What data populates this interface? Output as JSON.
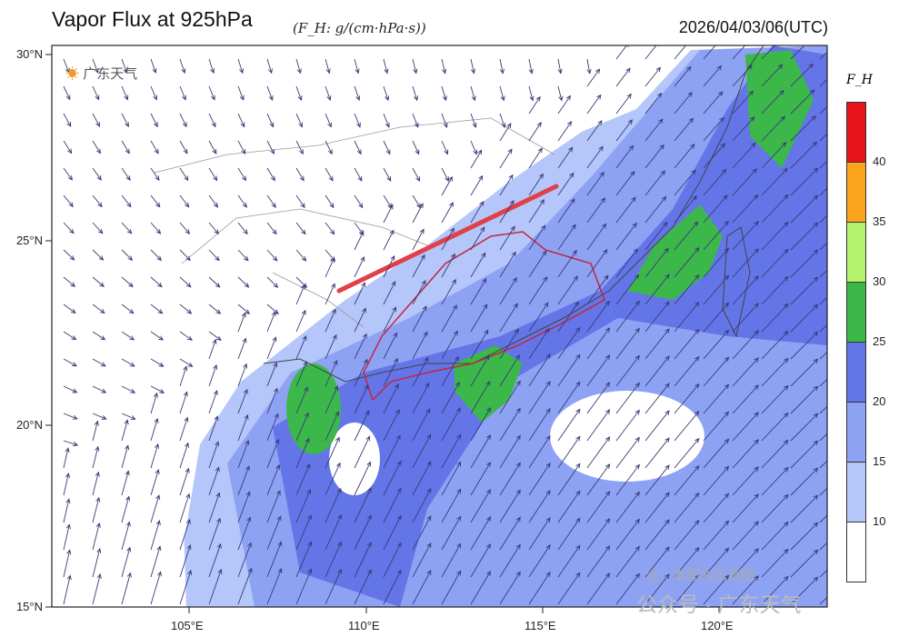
{
  "header": {
    "title": "Vapor Flux at 925hPa",
    "unit": "(F_H: g/(cm·hPa·s))",
    "time": "2026/04/03/06(UTC)"
  },
  "logo": {
    "text": "广东天气"
  },
  "axes": {
    "lat_labels": [
      "30°N",
      "25°N",
      "20°N",
      "15°N"
    ],
    "lon_labels": [
      "105°E",
      "110°E",
      "115°E",
      "120°E"
    ],
    "lon_range": [
      101.1,
      123.1
    ],
    "lat_range": [
      15,
      30
    ]
  },
  "legend": {
    "title": "F_H",
    "levels": [
      "10",
      "15",
      "20",
      "25",
      "30",
      "35",
      "40"
    ],
    "colors": [
      "#ffffff",
      "#b4c6fa",
      "#8ea2f4",
      "#6475e8",
      "#3cb84a",
      "#b4f46c",
      "#fca41c",
      "#e8141c"
    ]
  },
  "watermark": {
    "note": "注：本图为示意图",
    "account": "公众号 · 广东天气"
  }
}
